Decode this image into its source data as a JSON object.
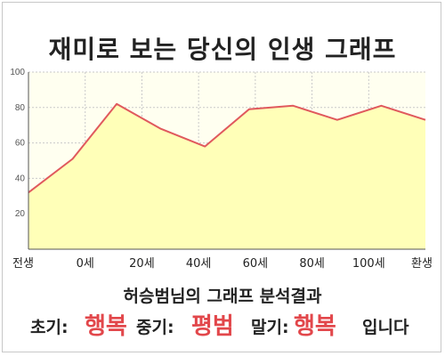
{
  "title": "재미로 보는 당신의 인생 그래프",
  "subtitle": "허승범님의 그래프 분석결과",
  "summary": {
    "early_label": "초기:",
    "early_value": "행복",
    "mid_label": "중기:",
    "mid_value": "평범",
    "late_label": "말기:",
    "late_value": "행복",
    "ending": "입니다"
  },
  "colors": {
    "line": "#e0595d",
    "fill": "#ffffb8",
    "plot_bg": "#fffff0",
    "value_text": "#e2474b"
  },
  "chart_data": {
    "type": "area",
    "title": "재미로 보는 당신의 인생 그래프",
    "xlabel": "",
    "ylabel": "",
    "ylim": [
      0,
      100
    ],
    "y_ticks": [
      20,
      40,
      60,
      80,
      100
    ],
    "x_tick_labels": [
      "전생",
      "0세",
      "20세",
      "40세",
      "60세",
      "80세",
      "100세",
      "환생"
    ],
    "grid": true,
    "series": [
      {
        "values": [
          32,
          51,
          82,
          68,
          58,
          79,
          81,
          73,
          81,
          73
        ]
      }
    ]
  }
}
